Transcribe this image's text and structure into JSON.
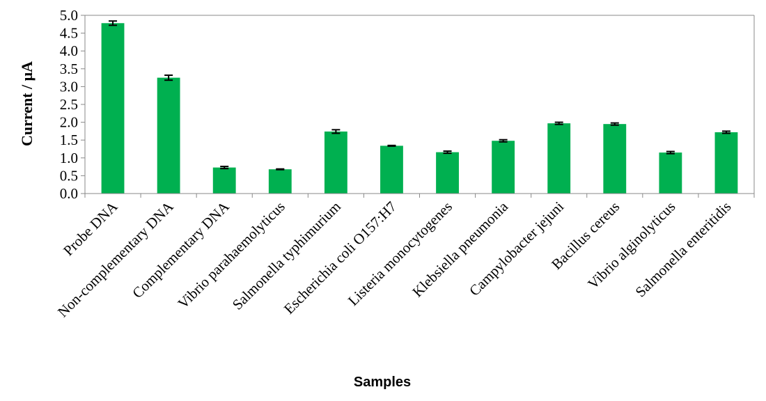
{
  "chart_data": {
    "type": "bar",
    "title": "",
    "xlabel": "Samples",
    "ylabel": "Current / μA",
    "ylim": [
      0,
      5.0
    ],
    "ytick_step": 0.5,
    "ytick_decimals": 1,
    "grid": false,
    "legend": "none",
    "bar_color": "#00b050",
    "error_bar_color": "#000000",
    "categories": [
      "Probe DNA",
      "Non-complementary DNA",
      "Complementary DNA",
      "Vibrio parahaemolyticus",
      "Salmonella typhimurium",
      "Escherichia coli O157:H7",
      "Listeria monocytogenes",
      "Klebsiella pneumonia",
      "Campylobacter jejuni",
      "Bacillus cereus",
      "Vibrio alginolyticus",
      "Salmonella enteritidis"
    ],
    "series": [
      {
        "values": [
          4.78,
          3.25,
          0.73,
          0.68,
          1.74,
          1.34,
          1.16,
          1.48,
          1.97,
          1.95,
          1.15,
          1.72
        ],
        "errors": [
          0.06,
          0.07,
          0.03,
          0.01,
          0.05,
          0.01,
          0.03,
          0.03,
          0.03,
          0.03,
          0.03,
          0.03
        ]
      }
    ]
  }
}
